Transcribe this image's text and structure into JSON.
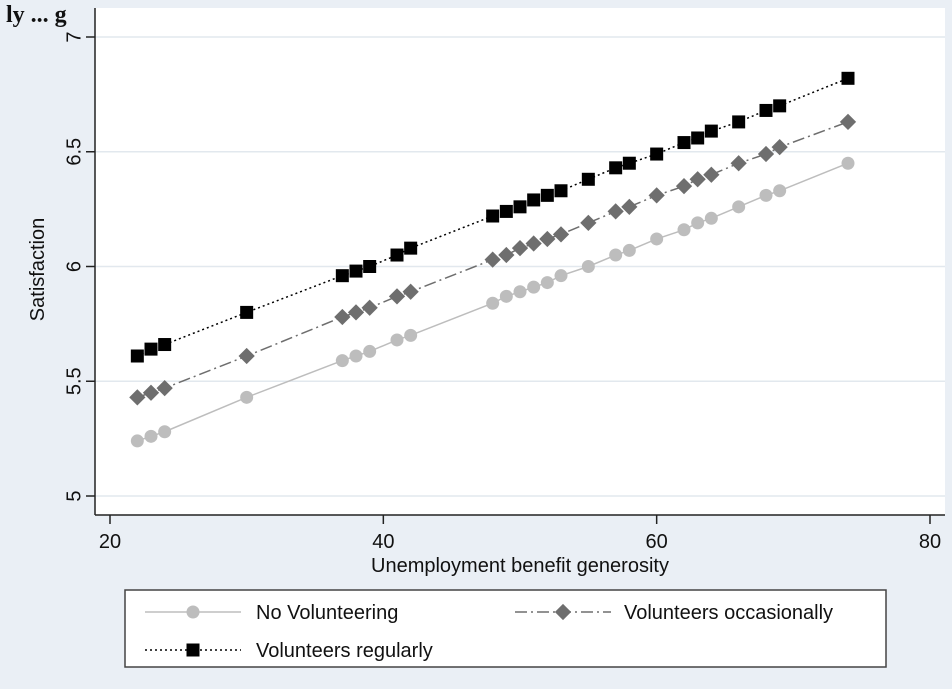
{
  "top_partial_title": "ly ... g",
  "chart_data": {
    "type": "line",
    "xlabel": "Unemployment benefit generosity",
    "ylabel": "Satisfaction",
    "xlim": [
      20,
      80
    ],
    "ylim": [
      5,
      7
    ],
    "xticks": [
      "20",
      "40",
      "60",
      "80"
    ],
    "yticks": [
      "5",
      "5.5",
      "6",
      "6.5",
      "7"
    ],
    "grid": "horizontal",
    "legend_position": "bottom",
    "series": [
      {
        "name": "No Volunteering",
        "color": "#bdbdbd",
        "marker": "circle",
        "line_style": "solid",
        "points": [
          [
            22,
            5.24
          ],
          [
            23,
            5.26
          ],
          [
            24,
            5.28
          ],
          [
            30,
            5.43
          ],
          [
            37,
            5.59
          ],
          [
            38,
            5.61
          ],
          [
            39,
            5.63
          ],
          [
            41,
            5.68
          ],
          [
            42,
            5.7
          ],
          [
            48,
            5.84
          ],
          [
            49,
            5.87
          ],
          [
            50,
            5.89
          ],
          [
            51,
            5.91
          ],
          [
            52,
            5.93
          ],
          [
            53,
            5.96
          ],
          [
            55,
            6.0
          ],
          [
            57,
            6.05
          ],
          [
            58,
            6.07
          ],
          [
            60,
            6.12
          ],
          [
            62,
            6.16
          ],
          [
            63,
            6.19
          ],
          [
            64,
            6.21
          ],
          [
            66,
            6.26
          ],
          [
            68,
            6.31
          ],
          [
            69,
            6.33
          ],
          [
            74,
            6.45
          ]
        ]
      },
      {
        "name": "Volunteers occasionally",
        "color": "#6e6e6e",
        "marker": "diamond",
        "line_style": "dash-dot",
        "points": [
          [
            22,
            5.43
          ],
          [
            23,
            5.45
          ],
          [
            24,
            5.47
          ],
          [
            30,
            5.61
          ],
          [
            37,
            5.78
          ],
          [
            38,
            5.8
          ],
          [
            39,
            5.82
          ],
          [
            41,
            5.87
          ],
          [
            42,
            5.89
          ],
          [
            48,
            6.03
          ],
          [
            49,
            6.05
          ],
          [
            50,
            6.08
          ],
          [
            51,
            6.1
          ],
          [
            52,
            6.12
          ],
          [
            53,
            6.14
          ],
          [
            55,
            6.19
          ],
          [
            57,
            6.24
          ],
          [
            58,
            6.26
          ],
          [
            60,
            6.31
          ],
          [
            62,
            6.35
          ],
          [
            63,
            6.38
          ],
          [
            64,
            6.4
          ],
          [
            66,
            6.45
          ],
          [
            68,
            6.49
          ],
          [
            69,
            6.52
          ],
          [
            74,
            6.63
          ]
        ]
      },
      {
        "name": "Volunteers regularly",
        "color": "#000000",
        "marker": "square",
        "line_style": "dotted",
        "points": [
          [
            22,
            5.61
          ],
          [
            23,
            5.64
          ],
          [
            24,
            5.66
          ],
          [
            30,
            5.8
          ],
          [
            37,
            5.96
          ],
          [
            38,
            5.98
          ],
          [
            39,
            6.0
          ],
          [
            41,
            6.05
          ],
          [
            42,
            6.08
          ],
          [
            48,
            6.22
          ],
          [
            49,
            6.24
          ],
          [
            50,
            6.26
          ],
          [
            51,
            6.29
          ],
          [
            52,
            6.31
          ],
          [
            53,
            6.33
          ],
          [
            55,
            6.38
          ],
          [
            57,
            6.43
          ],
          [
            58,
            6.45
          ],
          [
            60,
            6.49
          ],
          [
            62,
            6.54
          ],
          [
            63,
            6.56
          ],
          [
            64,
            6.59
          ],
          [
            66,
            6.63
          ],
          [
            68,
            6.68
          ],
          [
            69,
            6.7
          ],
          [
            74,
            6.82
          ]
        ]
      }
    ],
    "colors": {
      "outer_background": "#eaeff5",
      "plot_background": "#ffffff",
      "gridline": "#e2e8ee"
    }
  }
}
